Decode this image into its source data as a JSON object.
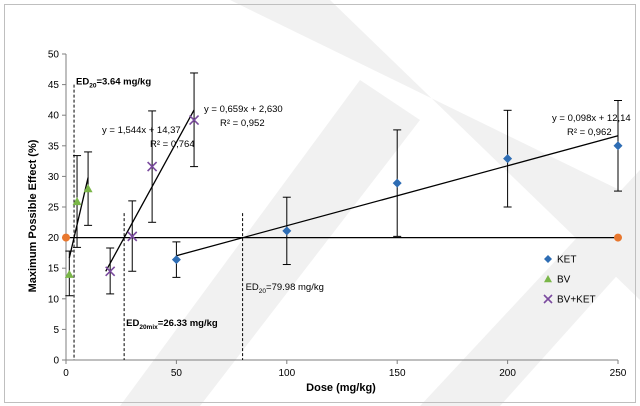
{
  "chart_data": {
    "type": "scatter",
    "xlabel": "Dose (mg/kg)",
    "ylabel": "Maximum Possible Effect (%)",
    "xlim": [
      0,
      250
    ],
    "ylim": [
      0,
      50
    ],
    "x_ticks": [
      "0",
      "50",
      "100",
      "150",
      "200",
      "250"
    ],
    "y_ticks": [
      "0",
      "5",
      "10",
      "15",
      "20",
      "25",
      "30",
      "35",
      "40",
      "45",
      "50"
    ],
    "grid": false,
    "legend_position": "right",
    "series": [
      {
        "name": "KET",
        "marker": "diamond",
        "color": "#2e6db4",
        "points": [
          {
            "x": 50,
            "y": 16.4,
            "err_low": 13.5,
            "err_high": 19.3
          },
          {
            "x": 100,
            "y": 21.1,
            "err_low": 15.6,
            "err_high": 26.6
          },
          {
            "x": 150,
            "y": 28.9,
            "err_low": 20.2,
            "err_high": 37.6
          },
          {
            "x": 200,
            "y": 32.9,
            "err_low": 25.0,
            "err_high": 40.8
          },
          {
            "x": 250,
            "y": 35.0,
            "err_low": 27.6,
            "err_high": 42.4
          }
        ],
        "fit": {
          "x_from": 50,
          "x_to": 250,
          "slope": 0.098,
          "intercept": 12.14
        }
      },
      {
        "name": "BV",
        "marker": "triangle",
        "color": "#7ab648",
        "points": [
          {
            "x": 1.5,
            "y": 14.0,
            "err_low": 10.5,
            "err_high": 17.8
          },
          {
            "x": 5,
            "y": 25.9,
            "err_low": 18.4,
            "err_high": 33.4
          },
          {
            "x": 10,
            "y": 28.0,
            "err_low": 22.0,
            "err_high": 34.0
          }
        ],
        "fit": {
          "x_from": 1.5,
          "x_to": 10,
          "slope": 1.544,
          "intercept": 14.37
        }
      },
      {
        "name": "BV+KET",
        "marker": "cross",
        "color": "#7a4a9e",
        "points": [
          {
            "x": 20,
            "y": 14.5,
            "err_low": 10.8,
            "err_high": 18.3
          },
          {
            "x": 30,
            "y": 20.2,
            "err_low": 14.5,
            "err_high": 26.0
          },
          {
            "x": 39,
            "y": 31.6,
            "err_low": 22.5,
            "err_high": 40.7
          },
          {
            "x": 58,
            "y": 39.2,
            "err_low": 31.6,
            "err_high": 46.9
          }
        ],
        "fit": {
          "x_from": 18,
          "x_to": 58,
          "slope": 0.659,
          "intercept": 2.63
        }
      }
    ],
    "reference_line": {
      "y": 20,
      "x_from": 0,
      "x_to": 250,
      "end_marker_color": "#e8772e"
    },
    "ed_lines": [
      {
        "x": 3.64,
        "y_top": 45,
        "label_main": "ED",
        "label_sub": "20",
        "label_rest": "=3.64 mg/kg"
      },
      {
        "x": 26.33,
        "y_top": 24,
        "label_main": "ED",
        "label_sub": "20mix",
        "label_rest": "=26.33 mg/kg"
      },
      {
        "x": 79.98,
        "y_top": 24,
        "label_main": "ED",
        "label_sub": "20",
        "label_rest": "=79.98 mg/kg"
      }
    ],
    "equations": [
      {
        "series": "BV",
        "line1": "y = 1,544x + 14,37",
        "line2": "R² = 0,764"
      },
      {
        "series": "BV+KET",
        "line1": "y = 0,659x + 2,630",
        "line2": "R² = 0,952"
      },
      {
        "series": "KET",
        "line1": "y = 0,098x + 12,14",
        "line2": "R² = 0,962"
      }
    ]
  }
}
